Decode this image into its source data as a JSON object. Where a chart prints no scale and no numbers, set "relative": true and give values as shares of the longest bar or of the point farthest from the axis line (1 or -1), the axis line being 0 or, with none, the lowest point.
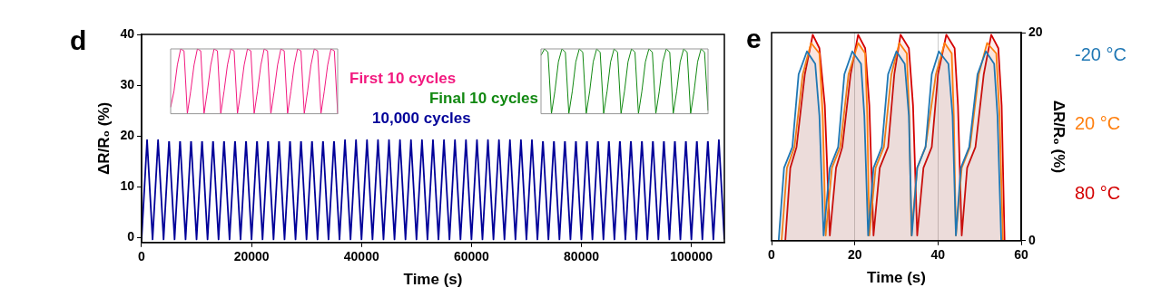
{
  "chart_data": [
    {
      "type": "line",
      "title": "d",
      "xlabel": "Time (s)",
      "ylabel": "ΔR/R₀ (%)",
      "xlim": [
        0,
        106000
      ],
      "xticks": [
        0,
        20000,
        40000,
        60000,
        80000,
        100000
      ],
      "ylim": [
        -1,
        40
      ],
      "yticks": [
        0,
        10,
        20,
        30,
        40
      ],
      "grid": false,
      "legend": false,
      "series": [
        {
          "name": "10,000 cycles",
          "color": "#000099",
          "x": [
            0,
            1000,
            2000,
            3000,
            4000,
            5000,
            6000,
            7000,
            8000,
            9000,
            10000,
            11000,
            12000,
            13000,
            14000,
            15000,
            16000,
            17000,
            18000,
            19000,
            20000,
            21000,
            22000,
            23000,
            24000,
            25000,
            26000,
            27000,
            28000,
            29000,
            30000,
            31000,
            32000,
            33000,
            34000,
            35000,
            36000,
            37000,
            38000,
            39000,
            40000,
            41000,
            42000,
            43000,
            44000,
            45000,
            46000,
            47000,
            48000,
            49000,
            50000,
            51000,
            52000,
            53000,
            54000,
            55000,
            56000,
            57000,
            58000,
            59000,
            60000,
            61000,
            62000,
            63000,
            64000,
            65000,
            66000,
            67000,
            68000,
            69000,
            70000,
            71000,
            72000,
            73000,
            74000,
            75000,
            76000,
            77000,
            78000,
            79000,
            80000,
            81000,
            82000,
            83000,
            84000,
            85000,
            86000,
            87000,
            88000,
            89000,
            90000,
            91000,
            92000,
            93000,
            94000,
            95000,
            96000,
            97000,
            98000,
            99000,
            100000,
            101000,
            102000,
            103000,
            104000,
            105000,
            106000
          ],
          "values": [
            -0.4,
            19.2,
            -0.4,
            19.2,
            -0.4,
            19.2,
            -0.4,
            19.2,
            -0.4,
            19.2,
            -0.4,
            19.2,
            -0.4,
            19.2,
            -0.4,
            19.2,
            -0.4,
            19.2,
            -0.4,
            19.2,
            -0.4,
            19.2,
            -0.4,
            19.2,
            -0.4,
            19.2,
            -0.4,
            19.2,
            -0.4,
            19.2,
            -0.4,
            19.2,
            -0.4,
            19.2,
            -0.4,
            19.2,
            -0.4,
            19.2,
            -0.4,
            19.2,
            -0.4,
            19.2,
            -0.4,
            19.2,
            -0.4,
            19.2,
            -0.4,
            19.2,
            -0.4,
            19.2,
            -0.4,
            19.2,
            -0.4,
            19.2,
            -0.4,
            19.2,
            -0.4,
            19.2,
            -0.4,
            19.2,
            -0.4,
            19.2,
            -0.4,
            19.2,
            -0.4,
            19.2,
            -0.4,
            19.2,
            -0.4,
            19.2,
            -0.4,
            19.2,
            -0.4,
            19.2,
            -0.4,
            19.2,
            -0.4,
            19.2,
            -0.4,
            19.2,
            -0.4,
            19.2,
            -0.4,
            19.2,
            -0.4,
            19.2,
            -0.4,
            19.2,
            -0.4,
            19.2,
            -0.4,
            19.2,
            -0.4,
            19.2,
            -0.4,
            19.2,
            -0.4,
            19.2,
            -0.4,
            19.2,
            -0.4,
            19.2,
            -0.4,
            19.2,
            -0.4,
            19.2,
            -0.4
          ]
        }
      ]
    },
    {
      "type": "line",
      "relative": true,
      "legend": false,
      "categories": [
        null,
        null,
        null,
        null,
        null,
        null,
        null,
        null,
        null,
        null,
        null,
        null,
        null,
        null,
        null,
        null,
        null,
        null,
        null,
        null,
        null,
        null,
        null,
        null,
        null,
        null,
        null,
        null,
        null,
        null,
        null,
        null,
        null,
        null,
        null,
        null,
        null,
        null,
        null,
        null,
        null,
        null,
        null,
        null,
        null,
        null,
        null,
        null,
        null,
        null,
        null
      ],
      "series": [
        {
          "name": "First 10 cycles",
          "color": "#f2197f",
          "values": [
            0.1,
            0.35,
            0.75,
            1,
            0.97,
            0,
            0.35,
            0.75,
            1,
            0.97,
            0,
            0.35,
            0.75,
            1,
            0.97,
            0,
            0.35,
            0.75,
            1,
            0.97,
            0,
            0.35,
            0.75,
            1,
            0.97,
            0,
            0.35,
            0.75,
            1,
            0.97,
            0,
            0.35,
            0.75,
            1,
            0.97,
            0,
            0.35,
            0.75,
            1,
            0.97,
            0,
            0.35,
            0.75,
            1,
            0.97,
            0,
            0.35,
            0.75,
            1,
            0.97,
            0
          ]
        }
      ]
    },
    {
      "type": "line",
      "relative": true,
      "legend": false,
      "categories": [
        null,
        null,
        null,
        null,
        null,
        null,
        null,
        null,
        null,
        null,
        null,
        null,
        null,
        null,
        null,
        null,
        null,
        null,
        null,
        null,
        null,
        null,
        null,
        null,
        null,
        null,
        null,
        null,
        null,
        null,
        null,
        null,
        null,
        null,
        null,
        null,
        null,
        null,
        null,
        null,
        null,
        null,
        null,
        null,
        null,
        null,
        null,
        null,
        null
      ],
      "series": [
        {
          "name": "Final 10 cycles",
          "color": "#118811",
          "values": [
            0.9,
            1,
            0.95,
            0,
            0.35,
            0.8,
            1,
            0.95,
            0,
            0.35,
            0.8,
            1,
            0.95,
            0,
            0.35,
            0.8,
            1,
            0.95,
            0,
            0.35,
            0.8,
            1,
            0.95,
            0,
            0.35,
            0.8,
            1,
            0.95,
            0,
            0.35,
            0.8,
            1,
            0.95,
            0,
            0.35,
            0.8,
            1,
            0.95,
            0,
            0.35,
            0.8,
            1,
            0.95,
            0,
            0.35,
            0.8,
            1,
            0.95,
            0.05
          ]
        }
      ]
    },
    {
      "type": "area",
      "title": "e",
      "xlabel": "Time (s)",
      "ylabel": "ΔR/R₀ (%)",
      "xlim": [
        0,
        60
      ],
      "xticks": [
        0,
        20,
        40,
        60
      ],
      "ylim": [
        0,
        20
      ],
      "yticks": [
        0,
        20
      ],
      "grid": "x",
      "legend": false,
      "series": [
        {
          "name": "-20 °C",
          "color": "#1f77b4",
          "x": [
            1.7,
            3,
            5,
            6.5,
            8.5,
            10.5,
            11.5,
            12.5,
            14,
            16,
            17.5,
            19.4,
            21.5,
            22.3,
            23.2,
            24.5,
            26.5,
            28,
            30,
            32,
            33,
            33.7,
            35,
            37,
            38.5,
            40.2,
            42.5,
            43.5,
            44.3,
            45.5,
            47.5,
            49.5,
            51.5,
            53.5,
            54.3,
            55.2
          ],
          "values": [
            0,
            7,
            9,
            16,
            18.2,
            17,
            12,
            0.5,
            7,
            9,
            16,
            18.2,
            17,
            12,
            0.5,
            7,
            9,
            16,
            18.2,
            17,
            12,
            0.5,
            7,
            9,
            16,
            18.2,
            17,
            12,
            0.5,
            7,
            9,
            16,
            18.2,
            17,
            12,
            0
          ]
        },
        {
          "name": "20 °C",
          "color": "#ff7f0e",
          "x": [
            2.4,
            3.7,
            5.5,
            7.5,
            9.5,
            11.5,
            12.3,
            13,
            14.5,
            16.5,
            18.5,
            20.8,
            22.5,
            23,
            23.5,
            25,
            27,
            28.8,
            30.7,
            32.5,
            33.1,
            33.6,
            35,
            37,
            39.5,
            41.6,
            43.3,
            43.8,
            44.3,
            45.7,
            47.7,
            49.8,
            51.8,
            54,
            54.8,
            55.6
          ],
          "values": [
            0,
            7,
            9,
            16,
            19,
            18,
            12,
            0.5,
            7,
            9,
            16,
            19,
            18,
            12,
            0.5,
            7,
            9,
            16,
            19,
            18,
            12,
            0.5,
            7,
            9,
            16,
            19,
            18,
            12,
            0.5,
            7,
            9,
            16,
            19,
            18,
            12,
            0
          ]
        },
        {
          "name": "80 °C",
          "color": "#d40000",
          "x": [
            3.3,
            4.5,
            6,
            8,
            9.9,
            11.5,
            12.8,
            14,
            15.5,
            17,
            19,
            20.8,
            22.5,
            23.5,
            24.5,
            26,
            28,
            29.5,
            31,
            33,
            34,
            35,
            36.5,
            38.5,
            40,
            42,
            44,
            44.8,
            45.7,
            47,
            49,
            51,
            52.8,
            54.5,
            55.3,
            56
          ],
          "values": [
            0,
            7,
            9,
            16,
            19.8,
            18.5,
            13,
            0.5,
            7,
            9,
            16,
            19.8,
            18.5,
            13,
            0.5,
            7,
            9,
            16,
            19.8,
            18.5,
            13,
            0.5,
            7,
            9,
            16,
            19.8,
            18.5,
            13,
            0.5,
            7,
            9,
            16,
            19.8,
            18.5,
            13,
            0
          ]
        }
      ]
    }
  ]
}
